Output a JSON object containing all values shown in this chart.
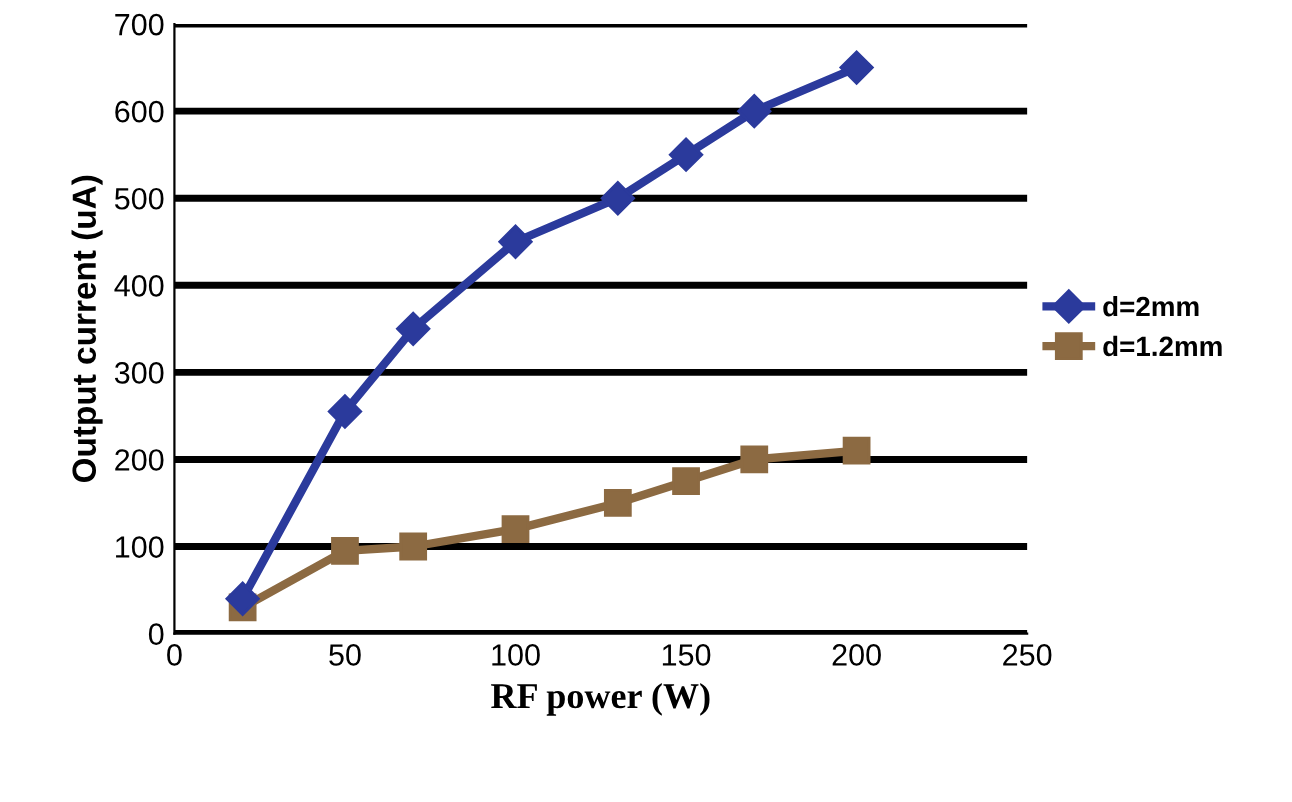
{
  "chart_data": {
    "type": "line",
    "xlabel": "RF power (W)",
    "ylabel": "Output current (uA)",
    "series": [
      {
        "name": "d=2mm",
        "color": "#2b3a9c",
        "marker": "diamond",
        "x": [
          20,
          50,
          70,
          100,
          130,
          150,
          170,
          200
        ],
        "values": [
          40,
          255,
          350,
          450,
          500,
          550,
          600,
          650
        ]
      },
      {
        "name": "d=1.2mm",
        "color": "#8c6a42",
        "marker": "square",
        "x": [
          20,
          50,
          70,
          100,
          130,
          150,
          170,
          200
        ],
        "values": [
          30,
          95,
          100,
          120,
          150,
          175,
          200,
          210
        ]
      }
    ],
    "xlim": [
      0,
      250
    ],
    "xticks": [
      0,
      50,
      100,
      150,
      200,
      250
    ],
    "ylim": [
      0,
      700
    ],
    "yticks": [
      0,
      100,
      200,
      300,
      400,
      500,
      600,
      700
    ],
    "grid": "y",
    "legend": "right"
  }
}
